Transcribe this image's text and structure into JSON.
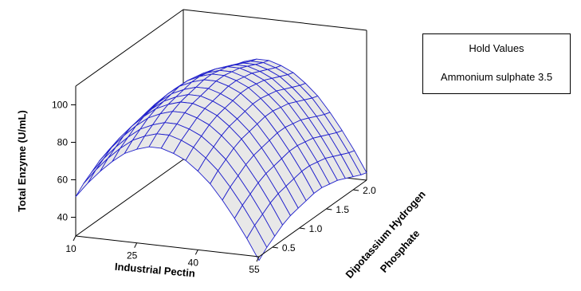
{
  "chart_data": {
    "type": "surface",
    "title": "",
    "xlabel": "Industrial Pectin",
    "ylabel": "Dipotassium Hydrogen Phosphate",
    "ylabel_lines": [
      "Dipotassium Hydrogen",
      "Phosphate"
    ],
    "zlabel": "Total Enzyme (U/mL)",
    "x_ticks": [
      10,
      25,
      40,
      55
    ],
    "y_ticks": [
      0.5,
      1.0,
      1.5,
      2.0
    ],
    "y_tick_labels": [
      "0.5",
      "1.0",
      "1.5",
      "2.0"
    ],
    "z_ticks": [
      40,
      60,
      80,
      100
    ],
    "xlim": [
      10,
      55
    ],
    "ylim": [
      0.25,
      2.25
    ],
    "zlim": [
      30,
      110
    ],
    "grid_x": [
      10.0,
      13.0,
      16.0,
      19.0,
      22.0,
      25.0,
      28.0,
      31.0,
      34.0,
      37.0,
      40.0,
      43.0,
      46.0,
      49.0,
      52.0,
      55.0
    ],
    "grid_y": [
      0.25,
      0.3958,
      0.5417,
      0.6875,
      0.8333,
      0.9792,
      1.125,
      1.2708,
      1.4167,
      1.5625,
      1.7083,
      1.8542,
      2.0,
      2.1458,
      2.25
    ],
    "z_values": [
      [
        51,
        55,
        58,
        61,
        63,
        64,
        65,
        66,
        66,
        65,
        64,
        62,
        60,
        58,
        57
      ],
      [
        59,
        63,
        66,
        69,
        71,
        72,
        73,
        74,
        74,
        73,
        72,
        70,
        68,
        66,
        65
      ],
      [
        66,
        70,
        73,
        76,
        78,
        79,
        80,
        81,
        81,
        80,
        79,
        77,
        75,
        73,
        72
      ],
      [
        72,
        76,
        79,
        82,
        84,
        85,
        86,
        87,
        87,
        86,
        85,
        83,
        81,
        79,
        78
      ],
      [
        77,
        81,
        84,
        87,
        89,
        90,
        91,
        92,
        92,
        91,
        90,
        88,
        86,
        84,
        83
      ],
      [
        80,
        84,
        87,
        90,
        92,
        93,
        94,
        95,
        95,
        94,
        93,
        91,
        89,
        87,
        86
      ],
      [
        82,
        86,
        89,
        92,
        94,
        95,
        96,
        97,
        97,
        96,
        95,
        93,
        91,
        89,
        88
      ],
      [
        82,
        86,
        89,
        92,
        94,
        95,
        96,
        97,
        97,
        96,
        95,
        93,
        91,
        89,
        88
      ],
      [
        80,
        84,
        87,
        90,
        92,
        93,
        94,
        95,
        95,
        94,
        93,
        91,
        89,
        87,
        86
      ],
      [
        77,
        81,
        84,
        87,
        89,
        90,
        91,
        92,
        92,
        91,
        90,
        88,
        86,
        84,
        83
      ],
      [
        72,
        76,
        79,
        82,
        84,
        85,
        86,
        87,
        87,
        86,
        85,
        83,
        81,
        79,
        78
      ],
      [
        66,
        70,
        73,
        76,
        78,
        79,
        80,
        81,
        81,
        80,
        79,
        77,
        75,
        73,
        72
      ],
      [
        58,
        62,
        65,
        68,
        70,
        71,
        72,
        73,
        73,
        72,
        71,
        69,
        67,
        65,
        64
      ],
      [
        49,
        53,
        56,
        59,
        61,
        62,
        63,
        64,
        64,
        63,
        62,
        60,
        58,
        56,
        55
      ],
      [
        39,
        43,
        46,
        49,
        51,
        52,
        53,
        54,
        54,
        53,
        52,
        50,
        48,
        46,
        45
      ],
      [
        28,
        32,
        35,
        38,
        40,
        41,
        42,
        43,
        43,
        42,
        41,
        39,
        37,
        35,
        34
      ]
    ],
    "colors": {
      "mesh": "#2020cc",
      "fill": "#e8e8e8",
      "axis": "#000000"
    },
    "legend": {
      "title": "Hold Values",
      "hold": "Ammonium sulphate 3.5",
      "position": "top-right"
    }
  }
}
